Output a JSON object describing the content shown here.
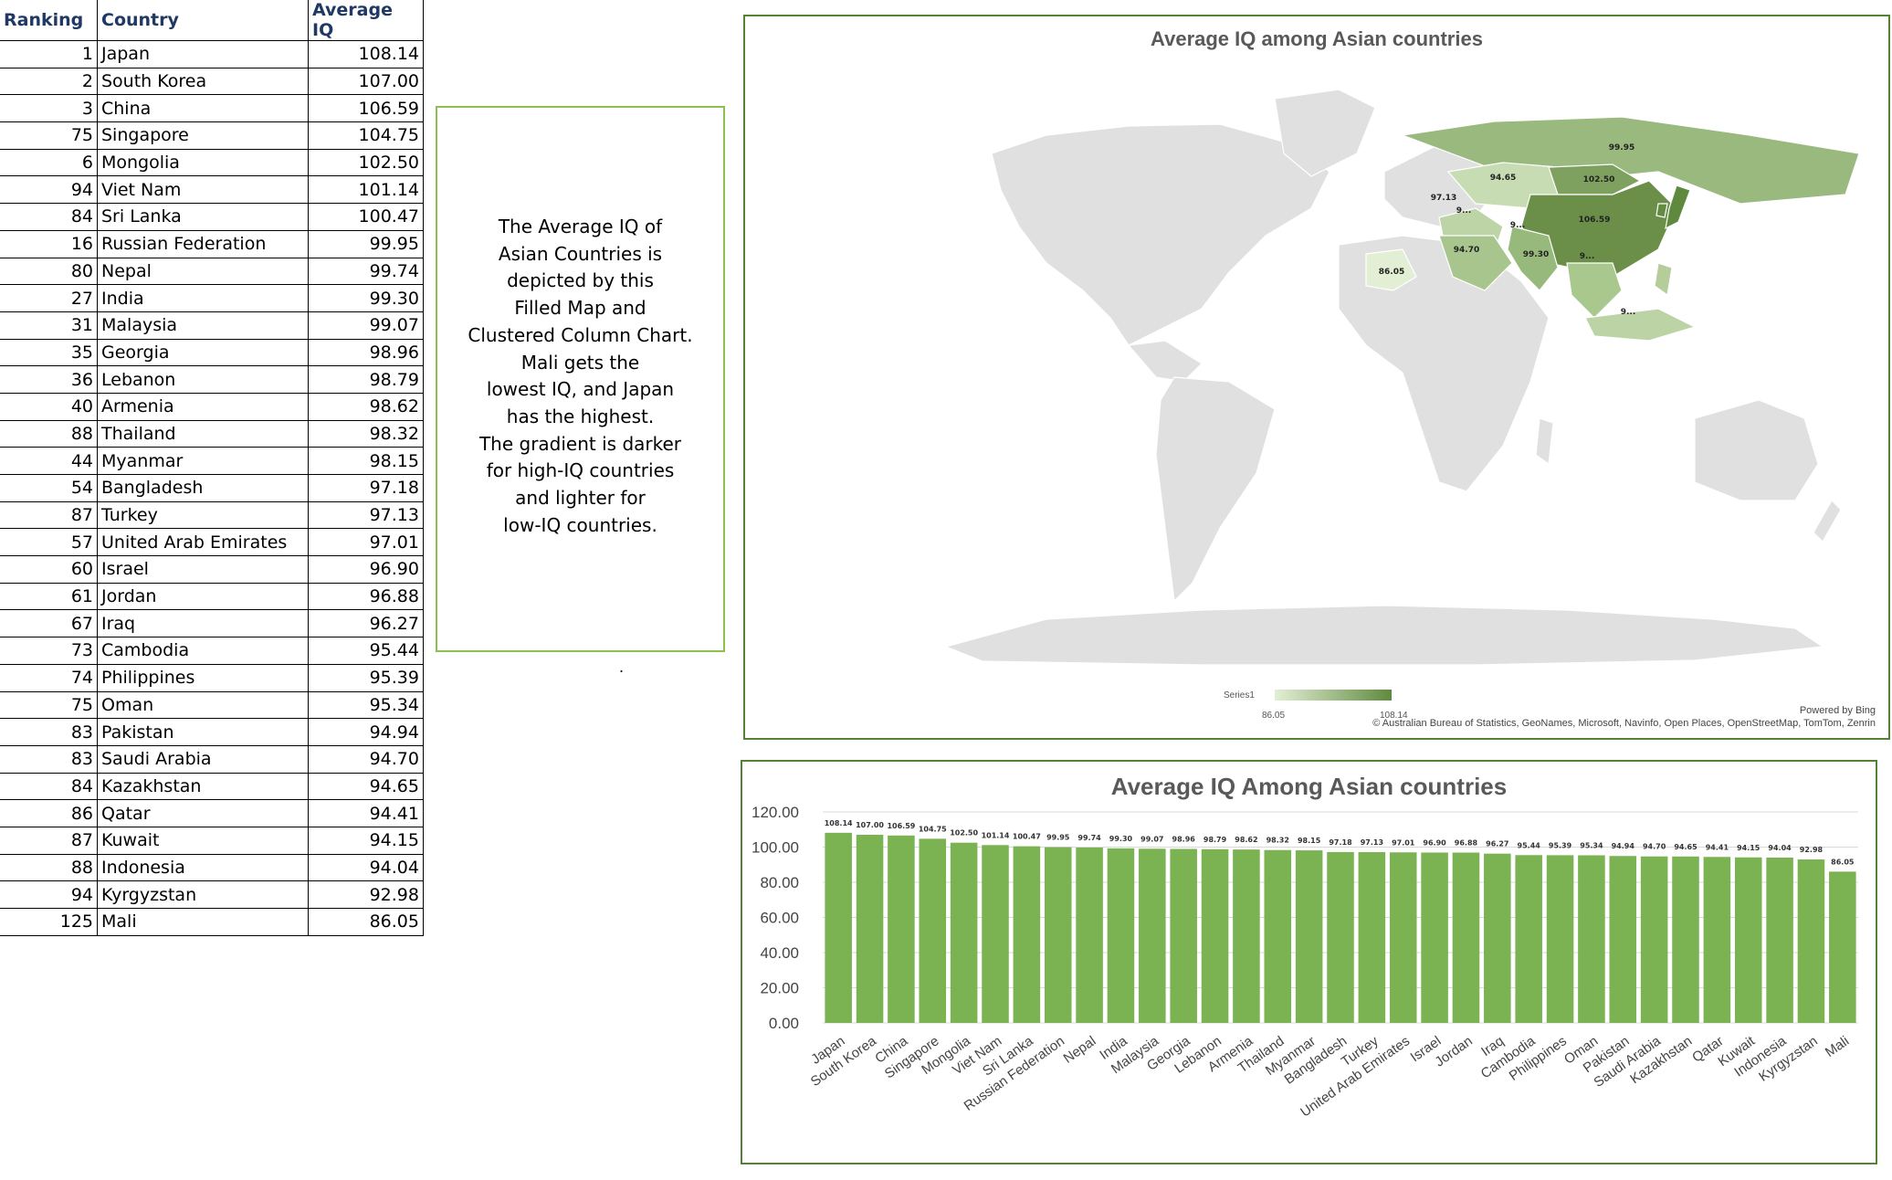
{
  "table": {
    "headers": [
      "Ranking",
      "Country",
      "Average IQ"
    ],
    "rows": [
      [
        "1",
        "Japan",
        "108.14"
      ],
      [
        "2",
        "South Korea",
        "107.00"
      ],
      [
        "3",
        "China",
        "106.59"
      ],
      [
        "75",
        "Singapore",
        "104.75"
      ],
      [
        "6",
        "Mongolia",
        "102.50"
      ],
      [
        "94",
        "Viet Nam",
        "101.14"
      ],
      [
        "84",
        "Sri Lanka",
        "100.47"
      ],
      [
        "16",
        "Russian Federation",
        "99.95"
      ],
      [
        "80",
        "Nepal",
        "99.74"
      ],
      [
        "27",
        "India",
        "99.30"
      ],
      [
        "31",
        "Malaysia",
        "99.07"
      ],
      [
        "35",
        "Georgia",
        "98.96"
      ],
      [
        "36",
        "Lebanon",
        "98.79"
      ],
      [
        "40",
        "Armenia",
        "98.62"
      ],
      [
        "88",
        "Thailand",
        "98.32"
      ],
      [
        "44",
        "Myanmar",
        "98.15"
      ],
      [
        "54",
        "Bangladesh",
        "97.18"
      ],
      [
        "87",
        "Turkey",
        "97.13"
      ],
      [
        "57",
        "United Arab Emirates",
        "97.01"
      ],
      [
        "60",
        "Israel",
        "96.90"
      ],
      [
        "61",
        "Jordan",
        "96.88"
      ],
      [
        "67",
        "Iraq",
        "96.27"
      ],
      [
        "73",
        "Cambodia",
        "95.44"
      ],
      [
        "74",
        "Philippines",
        "95.39"
      ],
      [
        "75",
        "Oman",
        "95.34"
      ],
      [
        "83",
        "Pakistan",
        "94.94"
      ],
      [
        "83",
        "Saudi Arabia",
        "94.70"
      ],
      [
        "84",
        "Kazakhstan",
        "94.65"
      ],
      [
        "86",
        "Qatar",
        "94.41"
      ],
      [
        "87",
        "Kuwait",
        "94.15"
      ],
      [
        "88",
        "Indonesia",
        "94.04"
      ],
      [
        "94",
        "Kyrgyzstan",
        "92.98"
      ],
      [
        "125",
        "Mali",
        "86.05"
      ]
    ]
  },
  "description": {
    "lines": [
      "The Average IQ of",
      "Asian Countries is",
      "depicted by this",
      "Filled Map and",
      "Clustered Column Chart.",
      "Mali gets the",
      "lowest IQ, and Japan",
      "has the highest.",
      "The gradient is darker",
      "for high-IQ countries",
      "and lighter for",
      "low-IQ countries."
    ],
    "stray_mark": "."
  },
  "map": {
    "title": "Average IQ among Asian countries",
    "legend_series": "Series1",
    "legend_min": "86.05",
    "legend_max": "108.14",
    "powered_by": "Powered by Bing",
    "attribution": "© Australian Bureau of Statistics, GeoNames, Microsoft, Navinfo, Open Places, OpenStreetMap, TomTom, Zenrin",
    "land_color": "#e0e0e0",
    "gradient_low": "#e3efd4",
    "gradient_high": "#5f8a3e",
    "region_labels": [
      "99.95",
      "94.65",
      "102.50",
      "106.59",
      "97.13",
      "9...",
      "94.70",
      "9...",
      "99.30",
      "9...",
      "86.05",
      "9..."
    ]
  },
  "chart_data": {
    "type": "bar",
    "title": "Average IQ Among Asian countries",
    "xlabel": "",
    "ylabel": "",
    "ylim": [
      0,
      120
    ],
    "yticks": [
      "0.00",
      "20.00",
      "40.00",
      "60.00",
      "80.00",
      "100.00",
      "120.00"
    ],
    "grid": true,
    "bar_color": "#7cb352",
    "categories": [
      "Japan",
      "South Korea",
      "China",
      "Singapore",
      "Mongolia",
      "Viet Nam",
      "Sri Lanka",
      "Russian Federation",
      "Nepal",
      "India",
      "Malaysia",
      "Georgia",
      "Lebanon",
      "Armenia",
      "Thailand",
      "Myanmar",
      "Bangladesh",
      "Turkey",
      "United Arab Emirates",
      "Israel",
      "Jordan",
      "Iraq",
      "Cambodia",
      "Philippines",
      "Oman",
      "Pakistan",
      "Saudi Arabia",
      "Kazakhstan",
      "Qatar",
      "Kuwait",
      "Indonesia",
      "Kyrgyzstan",
      "Mali"
    ],
    "values": [
      108.14,
      107.0,
      106.59,
      104.75,
      102.5,
      101.14,
      100.47,
      99.95,
      99.74,
      99.3,
      99.07,
      98.96,
      98.79,
      98.62,
      98.32,
      98.15,
      97.18,
      97.13,
      97.01,
      96.9,
      96.88,
      96.27,
      95.44,
      95.39,
      95.34,
      94.94,
      94.7,
      94.65,
      94.41,
      94.15,
      94.04,
      92.98,
      86.05
    ],
    "labels": [
      "108.14",
      "107.00",
      "106.59",
      "104.75",
      "102.50",
      "101.14",
      "100.47",
      "99.95",
      "99.74",
      "99.30",
      "99.07",
      "98.96",
      "98.79",
      "98.62",
      "98.32",
      "98.15",
      "97.18",
      "97.13",
      "97.01",
      "96.90",
      "96.88",
      "96.27",
      "95.44",
      "95.39",
      "95.34",
      "94.94",
      "94.70",
      "94.65",
      "94.41",
      "94.15",
      "94.04",
      "92.98",
      "86.05"
    ]
  }
}
